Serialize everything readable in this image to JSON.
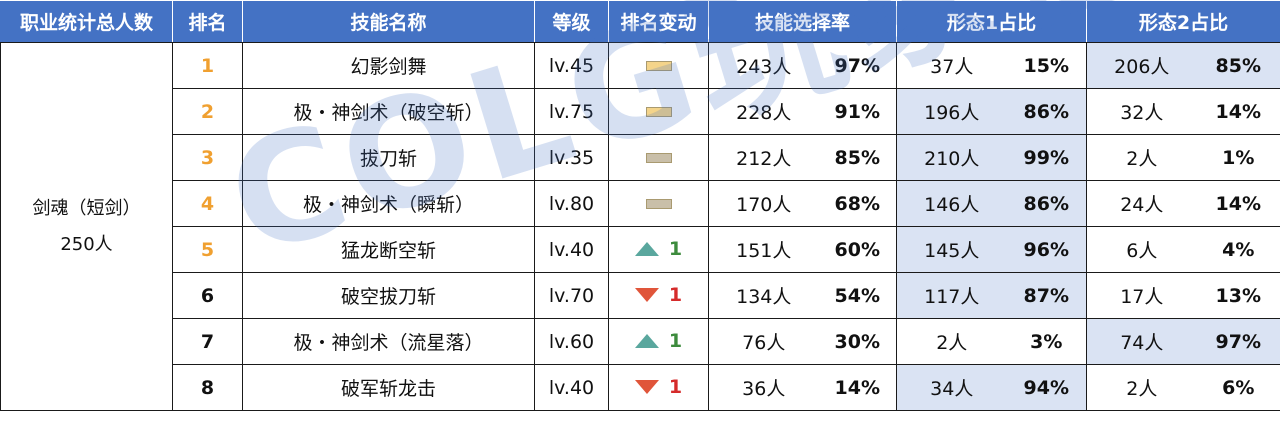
{
  "headers": {
    "job_total": "职业统计总人数",
    "rank": "排名",
    "skill_name": "技能名称",
    "level": "等级",
    "rank_change": "排名变动",
    "select_rate": "技能选择率",
    "form1_ratio": "形态1占比",
    "form2_ratio": "形态2占比"
  },
  "job": {
    "name": "剑魂（短剑）",
    "total": "250人"
  },
  "rows": [
    {
      "rank": "1",
      "skill": "幻影剑舞",
      "level": "lv.45",
      "change": "same",
      "change_num": "",
      "sel_count": "243人",
      "sel_pct": "97%",
      "f1_count": "37人",
      "f1_pct": "15%",
      "f2_count": "206人",
      "f2_pct": "85%"
    },
    {
      "rank": "2",
      "skill": "极・神剑术（破空斩）",
      "level": "lv.75",
      "change": "same",
      "change_num": "",
      "sel_count": "228人",
      "sel_pct": "91%",
      "f1_count": "196人",
      "f1_pct": "86%",
      "f2_count": "32人",
      "f2_pct": "14%"
    },
    {
      "rank": "3",
      "skill": "拔刀斩",
      "level": "lv.35",
      "change": "same",
      "change_num": "",
      "sel_count": "212人",
      "sel_pct": "85%",
      "f1_count": "210人",
      "f1_pct": "99%",
      "f2_count": "2人",
      "f2_pct": "1%"
    },
    {
      "rank": "4",
      "skill": "极・神剑术（瞬斩）",
      "level": "lv.80",
      "change": "same",
      "change_num": "",
      "sel_count": "170人",
      "sel_pct": "68%",
      "f1_count": "146人",
      "f1_pct": "86%",
      "f2_count": "24人",
      "f2_pct": "14%"
    },
    {
      "rank": "5",
      "skill": "猛龙断空斩",
      "level": "lv.40",
      "change": "up",
      "change_num": "1",
      "sel_count": "151人",
      "sel_pct": "60%",
      "f1_count": "145人",
      "f1_pct": "96%",
      "f2_count": "6人",
      "f2_pct": "4%"
    },
    {
      "rank": "6",
      "skill": "破空拔刀斩",
      "level": "lv.70",
      "change": "down",
      "change_num": "1",
      "sel_count": "134人",
      "sel_pct": "54%",
      "f1_count": "117人",
      "f1_pct": "87%",
      "f2_count": "17人",
      "f2_pct": "13%"
    },
    {
      "rank": "7",
      "skill": "极・神剑术（流星落）",
      "level": "lv.60",
      "change": "up",
      "change_num": "1",
      "sel_count": "76人",
      "sel_pct": "30%",
      "f1_count": "2人",
      "f1_pct": "3%",
      "f2_count": "74人",
      "f2_pct": "97%"
    },
    {
      "rank": "8",
      "skill": "破军斩龙击",
      "level": "lv.40",
      "change": "down",
      "change_num": "1",
      "sel_count": "36人",
      "sel_pct": "14%",
      "f1_count": "34人",
      "f1_pct": "94%",
      "f2_count": "2人",
      "f2_pct": "6%"
    }
  ],
  "watermark": "COLG玩家社区",
  "colors": {
    "header_bg": "#4472c4",
    "highlight_bg": "#dae3f3",
    "rank_top": "#f0a030",
    "up": "#5aa79e",
    "down": "#e0553a"
  }
}
